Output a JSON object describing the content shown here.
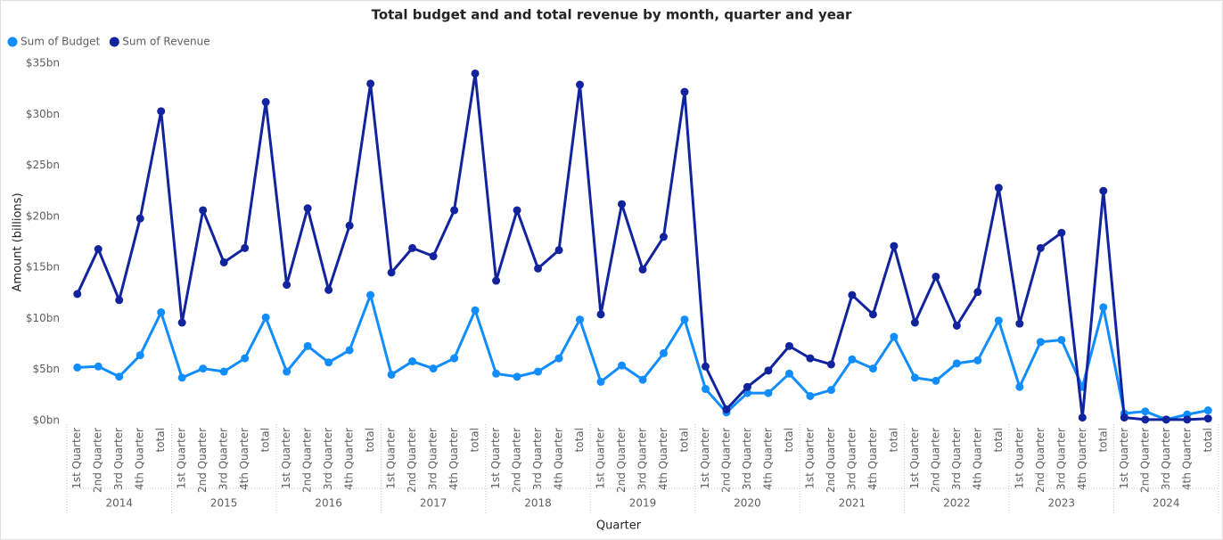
{
  "chart_data": {
    "type": "line",
    "title": "Total budget and and total revenue by month, quarter and year",
    "xlabel": "Quarter",
    "ylabel": "Amount (billions)",
    "legend_position": "top-left",
    "grid": false,
    "categories": [
      "1st Quarter",
      "2nd Quarter",
      "3rd Quarter",
      "4th Quarter",
      "total",
      "1st Quarter",
      "2nd Quarter",
      "3rd Quarter",
      "4th Quarter",
      "total",
      "1st Quarter",
      "2nd Quarter",
      "3rd Quarter",
      "4th Quarter",
      "total",
      "1st Quarter",
      "2nd Quarter",
      "3rd Quarter",
      "4th Quarter",
      "total",
      "1st Quarter",
      "2nd Quarter",
      "3rd Quarter",
      "4th Quarter",
      "total",
      "1st Quarter",
      "2nd Quarter",
      "3rd Quarter",
      "4th Quarter",
      "total",
      "1st Quarter",
      "2nd Quarter",
      "3rd Quarter",
      "4th Quarter",
      "total",
      "1st Quarter",
      "2nd Quarter",
      "3rd Quarter",
      "4th Quarter",
      "total",
      "1st Quarter",
      "2nd Quarter",
      "3rd Quarter",
      "4th Quarter",
      "total",
      "1st Quarter",
      "2nd Quarter",
      "3rd Quarter",
      "4th Quarter",
      "total",
      "1st Quarter",
      "2nd Quarter",
      "3rd Quarter",
      "4th Quarter",
      "total"
    ],
    "groups": [
      "2014",
      "2015",
      "2016",
      "2017",
      "2018",
      "2019",
      "2020",
      "2021",
      "2022",
      "2023",
      "2024"
    ],
    "ylim": [
      0,
      35
    ],
    "yticks": [
      {
        "value": 0,
        "label": "$0bn"
      },
      {
        "value": 5,
        "label": "$5bn"
      },
      {
        "value": 10,
        "label": "$10bn"
      },
      {
        "value": 15,
        "label": "$15bn"
      },
      {
        "value": 20,
        "label": "$20bn"
      },
      {
        "value": 25,
        "label": "$25bn"
      },
      {
        "value": 30,
        "label": "$30bn"
      },
      {
        "value": 35,
        "label": "$35bn"
      }
    ],
    "series": [
      {
        "name": "Sum of Budget",
        "color": "#118dff",
        "values": [
          5.2,
          5.3,
          4.3,
          6.4,
          10.6,
          4.2,
          5.1,
          4.8,
          6.1,
          10.1,
          4.8,
          7.3,
          5.7,
          6.9,
          12.3,
          4.5,
          5.8,
          5.1,
          6.1,
          10.8,
          4.6,
          4.3,
          4.8,
          6.1,
          9.9,
          3.8,
          5.4,
          4.0,
          6.6,
          9.9,
          3.1,
          0.8,
          2.7,
          2.7,
          4.6,
          2.4,
          3.0,
          6.0,
          5.1,
          8.2,
          4.2,
          3.9,
          5.6,
          5.9,
          9.8,
          3.3,
          7.7,
          7.9,
          3.3,
          11.1,
          0.7,
          0.9,
          0.1,
          0.6,
          1.0
        ]
      },
      {
        "name": "Sum of Revenue",
        "color": "#12239e",
        "values": [
          12.4,
          16.8,
          11.8,
          19.8,
          30.3,
          9.6,
          20.6,
          15.5,
          16.9,
          31.2,
          13.3,
          20.8,
          12.8,
          19.1,
          33.0,
          14.5,
          16.9,
          16.1,
          20.6,
          34.0,
          13.7,
          20.6,
          14.9,
          16.7,
          32.9,
          10.4,
          21.2,
          14.8,
          18.0,
          32.2,
          5.3,
          1.1,
          3.3,
          4.9,
          7.3,
          6.1,
          5.5,
          12.3,
          10.4,
          17.1,
          9.6,
          14.1,
          9.3,
          12.6,
          22.8,
          9.5,
          16.9,
          18.4,
          0.3,
          22.5,
          0.3,
          0.1,
          0.1,
          0.1,
          0.2
        ]
      }
    ]
  }
}
